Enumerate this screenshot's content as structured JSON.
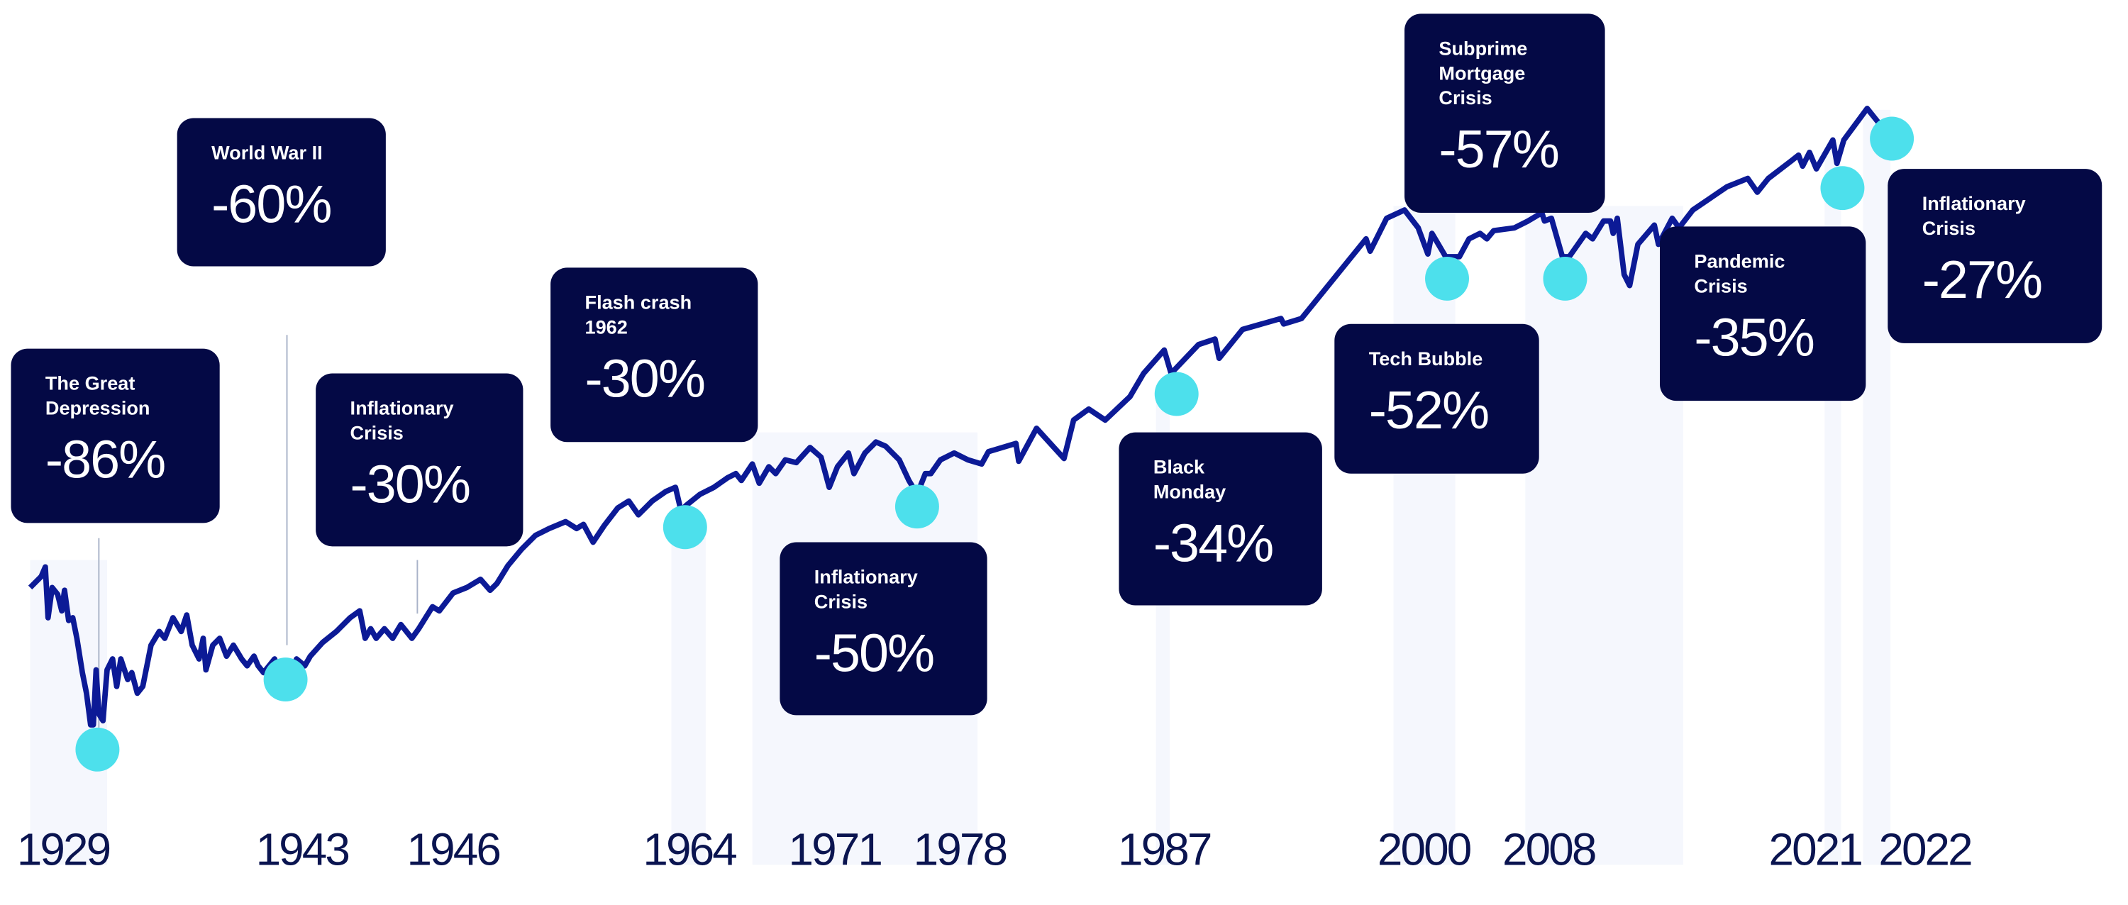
{
  "colors": {
    "box": "#040945",
    "line": "#0c1a96",
    "dot": "#4de0ec",
    "band": "#f5f7fd",
    "year": "#0a1450"
  },
  "chart_data": {
    "type": "line",
    "title": "",
    "xlabel": "",
    "ylabel": "",
    "grid": false,
    "events": [
      {
        "year": "1929",
        "label": "The Great Depression",
        "drawdown": "-86%"
      },
      {
        "year": "1943",
        "label": "World War II",
        "drawdown": "-60%"
      },
      {
        "year": "1946",
        "label": "Inflationary Crisis",
        "drawdown": "-30%"
      },
      {
        "year": "1964",
        "label": "Flash crash 1962",
        "drawdown": "-30%"
      },
      {
        "year": "1978",
        "label": "Inflationary Crisis",
        "drawdown": "-50%"
      },
      {
        "year": "1987",
        "label": "Black Monday",
        "drawdown": "-34%"
      },
      {
        "year": "2000",
        "label": "Tech Bubble",
        "drawdown": "-52%"
      },
      {
        "year": "2008",
        "label": "Subprime Mortgage Crisis",
        "drawdown": "-57%"
      },
      {
        "year": "2021",
        "label": "Pandemic Crisis",
        "drawdown": "-35%"
      },
      {
        "year": "2022",
        "label": "Inflationary Crisis",
        "drawdown": "-27%"
      }
    ],
    "x_tick_labels": [
      "1929",
      "1943",
      "1946",
      "1964",
      "1971",
      "1978",
      "1987",
      "2000",
      "2008",
      "2021",
      "2022"
    ]
  },
  "boxes": [
    {
      "title": "The Great\nDepression",
      "value": "-86%"
    },
    {
      "title": "World War II",
      "value": "-60%"
    },
    {
      "title": "Inflationary\nCrisis",
      "value": "-30%"
    },
    {
      "title": "Flash crash\n1962",
      "value": "-30%"
    },
    {
      "title": "Inflationary\nCrisis",
      "value": "-50%"
    },
    {
      "title": "Black\nMonday",
      "value": "-34%"
    },
    {
      "title": "Tech Bubble",
      "value": "-52%"
    },
    {
      "title": "Subprime\nMortgage\nCrisis",
      "value": "-57%"
    },
    {
      "title": "Pandemic\nCrisis",
      "value": "-35%"
    },
    {
      "title": "Inflationary\nCrisis",
      "value": "-27%"
    }
  ]
}
